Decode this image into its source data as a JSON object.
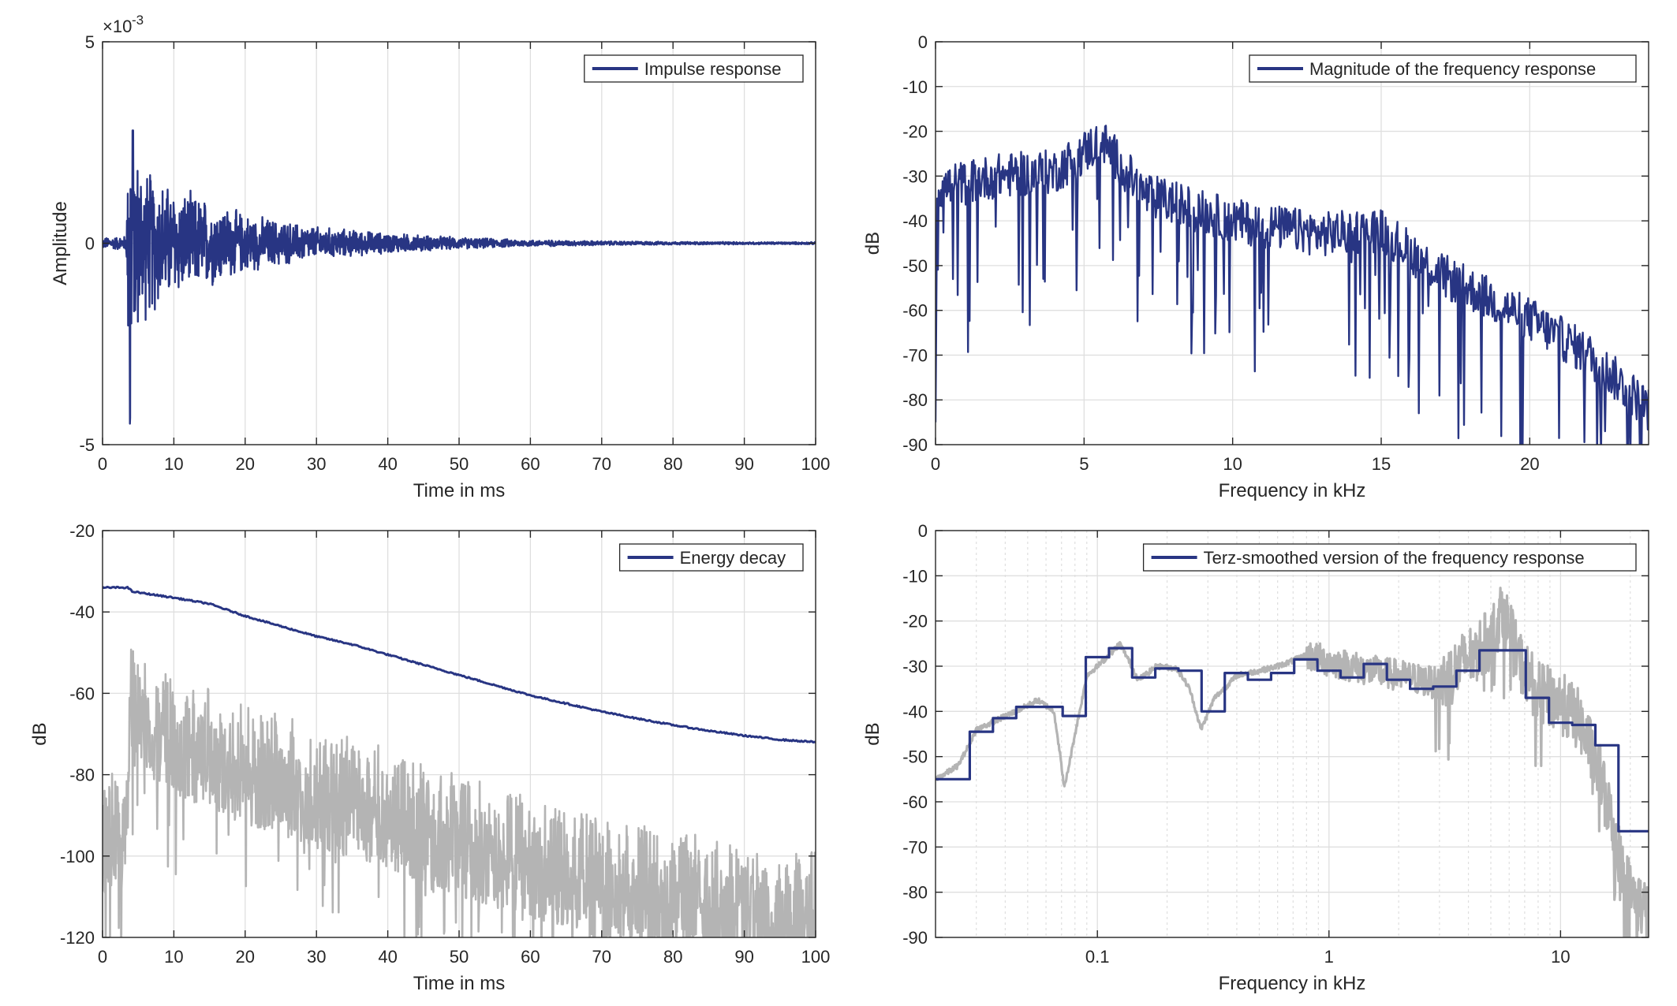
{
  "colors": {
    "primary": "#283583",
    "secondary": "#b4b4b4",
    "grid": "#dfdfdf",
    "axis": "#262626"
  },
  "chart_data": [
    {
      "id": "impulse",
      "type": "line",
      "xlabel": "Time in ms",
      "ylabel": "Amplitude",
      "xlim": [
        0,
        100
      ],
      "ylim": [
        -5,
        5
      ],
      "xticks": [
        0,
        10,
        20,
        30,
        40,
        50,
        60,
        70,
        80,
        90,
        100
      ],
      "yticks": [
        -5,
        0,
        5
      ],
      "exponent_label": "×10",
      "exponent_value": "-3",
      "grid": true,
      "legend_position": "top-right",
      "series": [
        {
          "name": "Impulse response",
          "color": "#283583",
          "envelope": [
            [
              0,
              0.15
            ],
            [
              3.3,
              0.2
            ],
            [
              3.8,
              4.6
            ],
            [
              4.3,
              2.8
            ],
            [
              6,
              2.1
            ],
            [
              10,
              1.5
            ],
            [
              15,
              1.2
            ],
            [
              20,
              0.8
            ],
            [
              30,
              0.45
            ],
            [
              40,
              0.28
            ],
            [
              50,
              0.16
            ],
            [
              60,
              0.09
            ],
            [
              70,
              0.06
            ],
            [
              80,
              0.04
            ],
            [
              100,
              0.03
            ]
          ]
        }
      ]
    },
    {
      "id": "magnitude",
      "type": "line",
      "xlabel": "Frequency in kHz",
      "ylabel": "dB",
      "xlim": [
        0,
        24
      ],
      "ylim": [
        -90,
        0
      ],
      "xticks": [
        0,
        5,
        10,
        15,
        20
      ],
      "yticks": [
        0,
        -10,
        -20,
        -30,
        -40,
        -50,
        -60,
        -70,
        -80,
        -90
      ],
      "grid": true,
      "legend_position": "top-right",
      "series": [
        {
          "name": "Magnitude of the frequency response",
          "color": "#283583",
          "trend": [
            [
              0,
              -33
            ],
            [
              2,
              -30
            ],
            [
              4,
              -29
            ],
            [
              5.6,
              -22
            ],
            [
              7,
              -34
            ],
            [
              10,
              -40
            ],
            [
              13,
              -43
            ],
            [
              15,
              -42
            ],
            [
              17,
              -52
            ],
            [
              20,
              -62
            ],
            [
              22,
              -70
            ],
            [
              24,
              -82
            ]
          ]
        }
      ]
    },
    {
      "id": "energy",
      "type": "line",
      "xlabel": "Time in ms",
      "ylabel": "dB",
      "xlim": [
        0,
        100
      ],
      "ylim": [
        -120,
        -20
      ],
      "xticks": [
        0,
        10,
        20,
        30,
        40,
        50,
        60,
        70,
        80,
        90,
        100
      ],
      "yticks": [
        -20,
        -40,
        -60,
        -80,
        -100,
        -120
      ],
      "grid": true,
      "legend_position": "top-right",
      "series": [
        {
          "name": "Energy decay",
          "color": "#283583",
          "points": [
            [
              0,
              -34
            ],
            [
              3.5,
              -34
            ],
            [
              4.2,
              -35
            ],
            [
              10,
              -36.5
            ],
            [
              15,
              -38
            ],
            [
              20,
              -41
            ],
            [
              25,
              -43.5
            ],
            [
              30,
              -46
            ],
            [
              35,
              -48
            ],
            [
              40,
              -50.5
            ],
            [
              45,
              -53
            ],
            [
              50,
              -55.5
            ],
            [
              55,
              -58
            ],
            [
              60,
              -60.5
            ],
            [
              65,
              -62.5
            ],
            [
              70,
              -64.5
            ],
            [
              75,
              -66.2
            ],
            [
              80,
              -67.8
            ],
            [
              85,
              -69.2
            ],
            [
              90,
              -70.4
            ],
            [
              95,
              -71.4
            ],
            [
              100,
              -72
            ]
          ]
        },
        {
          "name": "",
          "color": "#b4b4b4",
          "envelope_top": [
            [
              0,
              -80
            ],
            [
              3.5,
              -78
            ],
            [
              3.8,
              -47
            ],
            [
              10,
              -55
            ],
            [
              20,
              -62
            ],
            [
              30,
              -68
            ],
            [
              40,
              -73
            ],
            [
              50,
              -80
            ],
            [
              60,
              -85
            ],
            [
              70,
              -90
            ],
            [
              80,
              -93
            ],
            [
              90,
              -97
            ],
            [
              100,
              -99
            ]
          ]
        }
      ]
    },
    {
      "id": "terz",
      "type": "line",
      "xlabel": "Frequency in kHz",
      "ylabel": "dB",
      "xscale": "log",
      "xlim": [
        0.02,
        24
      ],
      "ylim": [
        -90,
        0
      ],
      "xticks": [
        0.1,
        1,
        10
      ],
      "xticklabels": [
        "0.1",
        "1",
        "10"
      ],
      "yticks": [
        0,
        -10,
        -20,
        -30,
        -40,
        -50,
        -60,
        -70,
        -80,
        -90
      ],
      "grid": true,
      "legend_position": "top-right",
      "series": [
        {
          "name": "Terz-smoothed version of the frequency response",
          "color": "#283583",
          "step_edges": [
            0.02,
            0.0281,
            0.0354,
            0.0446,
            0.0562,
            0.0708,
            0.0891,
            0.1122,
            0.1413,
            0.1778,
            0.2239,
            0.2818,
            0.3548,
            0.4467,
            0.5623,
            0.7079,
            0.8913,
            1.122,
            1.413,
            1.778,
            2.239,
            2.818,
            3.548,
            4.467,
            5.623,
            7.079,
            8.913,
            11.22,
            14.13,
            17.78,
            24
          ],
          "step_values": [
            -55,
            -44.5,
            -41.5,
            -39,
            -39,
            -41,
            -28,
            -26,
            -32.5,
            -30.5,
            -31,
            -40,
            -31.5,
            -33,
            -31.5,
            -28.5,
            -31,
            -32.5,
            -29.5,
            -33,
            -35,
            -34.5,
            -31,
            -26.5,
            -26.5,
            -37,
            -42.5,
            -43,
            -47.5,
            -66.5
          ]
        },
        {
          "name": "",
          "color": "#b4b4b4",
          "trend": [
            [
              0.02,
              -55
            ],
            [
              0.025,
              -52
            ],
            [
              0.03,
              -44
            ],
            [
              0.04,
              -41
            ],
            [
              0.055,
              -37.5
            ],
            [
              0.065,
              -40
            ],
            [
              0.072,
              -57
            ],
            [
              0.08,
              -45
            ],
            [
              0.09,
              -32
            ],
            [
              0.11,
              -28
            ],
            [
              0.125,
              -25
            ],
            [
              0.15,
              -33
            ],
            [
              0.18,
              -30
            ],
            [
              0.22,
              -30.5
            ],
            [
              0.25,
              -35
            ],
            [
              0.28,
              -44
            ],
            [
              0.32,
              -37
            ],
            [
              0.4,
              -32
            ],
            [
              0.6,
              -30
            ],
            [
              0.8,
              -27.5
            ],
            [
              1,
              -29
            ],
            [
              1.5,
              -31
            ],
            [
              2,
              -32
            ],
            [
              3,
              -34
            ],
            [
              4,
              -28
            ],
            [
              5,
              -24
            ],
            [
              5.6,
              -17
            ],
            [
              6.5,
              -28
            ],
            [
              8,
              -36
            ],
            [
              10,
              -38
            ],
            [
              12,
              -42
            ],
            [
              15,
              -55
            ],
            [
              18,
              -72
            ],
            [
              20,
              -80
            ],
            [
              24,
              -85
            ]
          ]
        }
      ]
    }
  ]
}
